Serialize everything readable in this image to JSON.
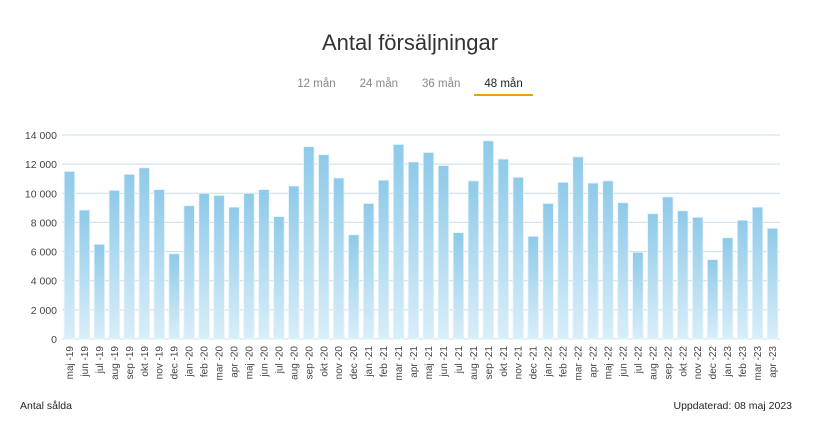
{
  "tabs": [
    {
      "label": "12 mån",
      "active": false
    },
    {
      "label": "24 mån",
      "active": false
    },
    {
      "label": "36 mån",
      "active": false
    },
    {
      "label": "48 mån",
      "active": true
    }
  ],
  "footer": {
    "left": "Antal sålda",
    "right": "Uppdaterad: 08 maj 2023"
  },
  "colors": {
    "bar_top": "#8ecae9",
    "bar_bottom": "#d9eef9",
    "grid": "#c9dde8",
    "accent": "#f0a000"
  },
  "chart_data": {
    "type": "bar",
    "title": "Antal försäljningar",
    "xlabel": "",
    "ylabel": "",
    "ylim": [
      0,
      14000
    ],
    "yticks": [
      0,
      2000,
      4000,
      6000,
      8000,
      10000,
      12000,
      14000
    ],
    "ytick_labels": [
      "0",
      "2 000",
      "4 000",
      "6 000",
      "8 000",
      "10 000",
      "12 000",
      "14 000"
    ],
    "grid": true,
    "categories": [
      "maj -19",
      "jun -19",
      "jul -19",
      "aug -19",
      "sep -19",
      "okt -19",
      "nov -19",
      "dec -19",
      "jan -20",
      "feb -20",
      "mar -20",
      "apr -20",
      "maj -20",
      "jun -20",
      "jul -20",
      "aug -20",
      "sep -20",
      "okt -20",
      "nov -20",
      "dec -20",
      "jan -21",
      "feb -21",
      "mar -21",
      "apr -21",
      "maj -21",
      "jun -21",
      "jul -21",
      "aug -21",
      "sep -21",
      "okt -21",
      "nov -21",
      "dec -21",
      "jan -22",
      "feb -22",
      "mar -22",
      "apr -22",
      "maj -22",
      "jun -22",
      "jul -22",
      "aug -22",
      "sep -22",
      "okt -22",
      "nov -22",
      "dec -22",
      "jan -23",
      "feb -23",
      "mar -23",
      "apr -23"
    ],
    "values": [
      11500,
      8850,
      6500,
      10200,
      11300,
      11750,
      10250,
      5850,
      9150,
      10000,
      9850,
      9050,
      10000,
      10250,
      8400,
      10500,
      13200,
      12650,
      11050,
      7150,
      9300,
      10900,
      13350,
      12150,
      12800,
      11900,
      7300,
      10850,
      13600,
      12350,
      11100,
      7050,
      9300,
      10750,
      12500,
      10700,
      10850,
      9350,
      5950,
      8600,
      9750,
      8800,
      8350,
      5450,
      6950,
      8150,
      9050,
      7600
    ]
  }
}
